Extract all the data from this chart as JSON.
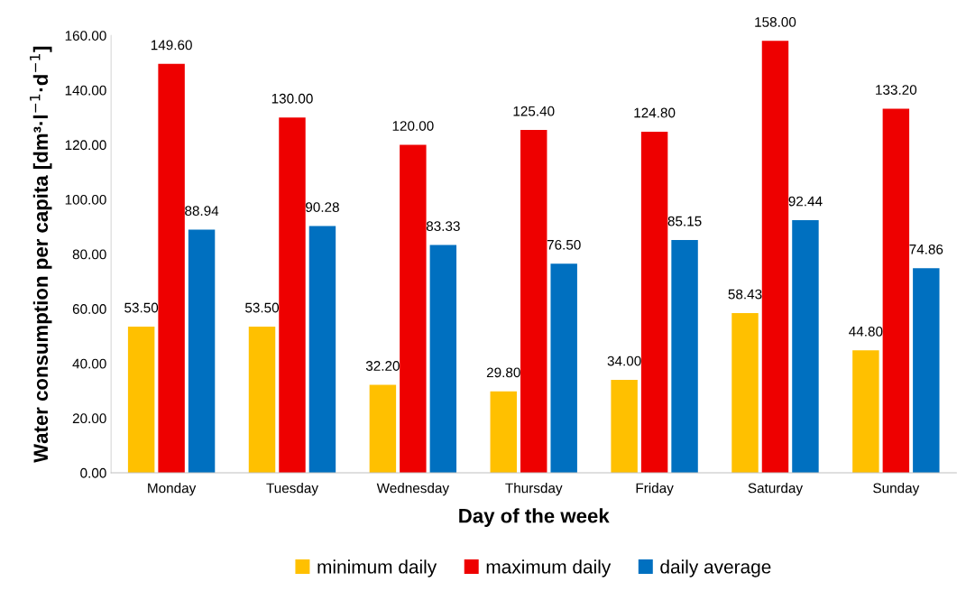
{
  "chart_data": {
    "type": "bar",
    "xlabel": "Day of the week",
    "ylabel": "Water consumption per capita [dm³·l$^{−1}$·d$^{−1}$]",
    "categories": [
      "Monday",
      "Tuesday",
      "Wednesday",
      "Thursday",
      "Friday",
      "Saturday",
      "Sunday"
    ],
    "series": [
      {
        "name": "minimum daily",
        "color": "#ffc000",
        "values": [
          53.5,
          53.5,
          32.2,
          29.8,
          34.0,
          58.43,
          44.8
        ],
        "value_labels": [
          "53.50",
          "53.50",
          "32.20",
          "29.80",
          "34.00",
          "58.43",
          "44.80"
        ]
      },
      {
        "name": "maximum daily",
        "color": "#ee0000",
        "values": [
          149.6,
          130.0,
          120.0,
          125.4,
          124.8,
          158.0,
          133.2
        ],
        "value_labels": [
          "149.60",
          "130.00",
          "120.00",
          "125.40",
          "124.80",
          "158.00",
          "133.20"
        ]
      },
      {
        "name": "daily average",
        "color": "#0070c0",
        "values": [
          88.94,
          90.28,
          83.33,
          76.5,
          85.15,
          92.44,
          74.86
        ],
        "value_labels": [
          "88.94",
          "90.28",
          "83.33",
          "76.50",
          "85.15",
          "92.44",
          "74.86"
        ]
      }
    ],
    "ylim": [
      0,
      160
    ],
    "yticks": [
      {
        "value": 0,
        "label": "0.00"
      },
      {
        "value": 20,
        "label": "20.00"
      },
      {
        "value": 40,
        "label": "40.00"
      },
      {
        "value": 60,
        "label": "60.00"
      },
      {
        "value": 80,
        "label": "80.00"
      },
      {
        "value": 100,
        "label": "100.00"
      },
      {
        "value": 120,
        "label": "120.00"
      },
      {
        "value": 140,
        "label": "140.00"
      },
      {
        "value": 160,
        "label": "160.00"
      }
    ],
    "grid": false,
    "legend": "bottom"
  }
}
